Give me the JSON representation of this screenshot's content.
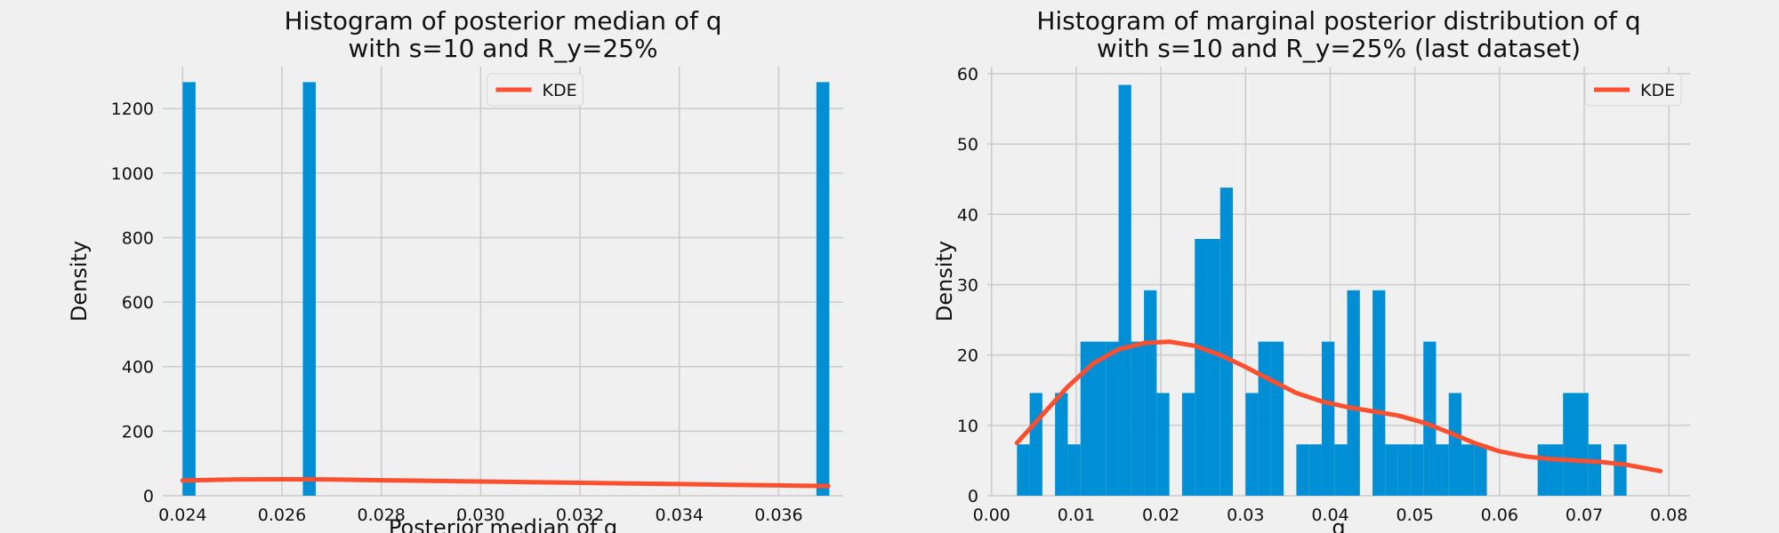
{
  "figure": {
    "background": "#f0f0f0",
    "plot_background": "#f0f0f0",
    "grid_color": "#cbcbcb",
    "bar_color": "#008fd5",
    "kde_color": "#fc4f30"
  },
  "chart_data": [
    {
      "type": "bar",
      "title_line1": "Histogram of posterior median of q",
      "title_line2": "with s=10 and R_y=25%",
      "xlabel": "Posterior median of q",
      "ylabel": "Density",
      "xlim": [
        0.0236,
        0.0373
      ],
      "ylim": [
        0,
        1330
      ],
      "grid": true,
      "legend": {
        "position": "top-center",
        "label": "KDE"
      },
      "x_ticks": [
        {
          "value": 0.024,
          "label": "0.024"
        },
        {
          "value": 0.026,
          "label": "0.026"
        },
        {
          "value": 0.028,
          "label": "0.028"
        },
        {
          "value": 0.03,
          "label": "0.030"
        },
        {
          "value": 0.032,
          "label": "0.032"
        },
        {
          "value": 0.034,
          "label": "0.034"
        },
        {
          "value": 0.036,
          "label": "0.036"
        }
      ],
      "y_ticks": [
        {
          "value": 0,
          "label": "0"
        },
        {
          "value": 200,
          "label": "200"
        },
        {
          "value": 400,
          "label": "400"
        },
        {
          "value": 600,
          "label": "600"
        },
        {
          "value": 800,
          "label": "800"
        },
        {
          "value": 1000,
          "label": "1000"
        },
        {
          "value": 1200,
          "label": "1200"
        }
      ],
      "bins": [
        {
          "x0": 0.024,
          "x1": 0.02426,
          "density": 1282
        },
        {
          "x0": 0.02642,
          "x1": 0.02668,
          "density": 1282
        },
        {
          "x0": 0.03676,
          "x1": 0.03702,
          "density": 1282
        }
      ],
      "kde": {
        "x": [
          0.024,
          0.025,
          0.026,
          0.027,
          0.028,
          0.029,
          0.03,
          0.031,
          0.032,
          0.033,
          0.034,
          0.035,
          0.036,
          0.037
        ],
        "y": [
          47,
          50,
          51,
          50,
          48,
          46,
          44,
          42,
          40,
          38,
          36,
          34,
          32,
          30
        ]
      }
    },
    {
      "type": "bar",
      "title_line1": "Histogram of marginal posterior distribution of q",
      "title_line2": "with s=10 and R_y=25% (last dataset)",
      "xlabel": "q",
      "ylabel": "Density",
      "xlim": [
        -0.0005,
        0.0825
      ],
      "ylim": [
        0,
        61
      ],
      "grid": true,
      "legend": {
        "position": "top-right",
        "label": "KDE"
      },
      "x_ticks": [
        {
          "value": 0.0,
          "label": "0.00"
        },
        {
          "value": 0.01,
          "label": "0.01"
        },
        {
          "value": 0.02,
          "label": "0.02"
        },
        {
          "value": 0.03,
          "label": "0.03"
        },
        {
          "value": 0.04,
          "label": "0.04"
        },
        {
          "value": 0.05,
          "label": "0.05"
        },
        {
          "value": 0.06,
          "label": "0.06"
        },
        {
          "value": 0.07,
          "label": "0.07"
        },
        {
          "value": 0.08,
          "label": "0.08"
        }
      ],
      "y_ticks": [
        {
          "value": 0,
          "label": "0"
        },
        {
          "value": 10,
          "label": "10"
        },
        {
          "value": 20,
          "label": "20"
        },
        {
          "value": 30,
          "label": "30"
        },
        {
          "value": 40,
          "label": "40"
        },
        {
          "value": 50,
          "label": "50"
        },
        {
          "value": 60,
          "label": "60"
        }
      ],
      "bin_start": 0.003,
      "bin_width": 0.0015,
      "bin_values": [
        7.3,
        14.6,
        0,
        14.6,
        7.3,
        21.9,
        21.9,
        21.9,
        58.4,
        21.9,
        29.2,
        14.6,
        0,
        14.6,
        36.5,
        36.5,
        43.8,
        0,
        14.6,
        21.9,
        21.9,
        0,
        7.3,
        7.3,
        21.9,
        7.3,
        29.2,
        0,
        29.2,
        7.3,
        7.3,
        7.3,
        21.9,
        7.3,
        14.6,
        7.3,
        7.3,
        0,
        0,
        0,
        0,
        7.3,
        7.3,
        14.6,
        14.6,
        7.3,
        0,
        7.3
      ],
      "kde": {
        "x": [
          0.003,
          0.006,
          0.009,
          0.012,
          0.015,
          0.018,
          0.021,
          0.024,
          0.027,
          0.03,
          0.033,
          0.036,
          0.039,
          0.042,
          0.045,
          0.048,
          0.051,
          0.054,
          0.057,
          0.06,
          0.063,
          0.066,
          0.069,
          0.072,
          0.075,
          0.079
        ],
        "y": [
          7.5,
          11.5,
          15.5,
          18.8,
          20.8,
          21.7,
          21.9,
          21.3,
          20.0,
          18.3,
          16.4,
          14.6,
          13.4,
          12.6,
          12.0,
          11.4,
          10.4,
          9.0,
          7.5,
          6.3,
          5.6,
          5.2,
          5.0,
          4.8,
          4.4,
          3.5
        ]
      }
    }
  ]
}
